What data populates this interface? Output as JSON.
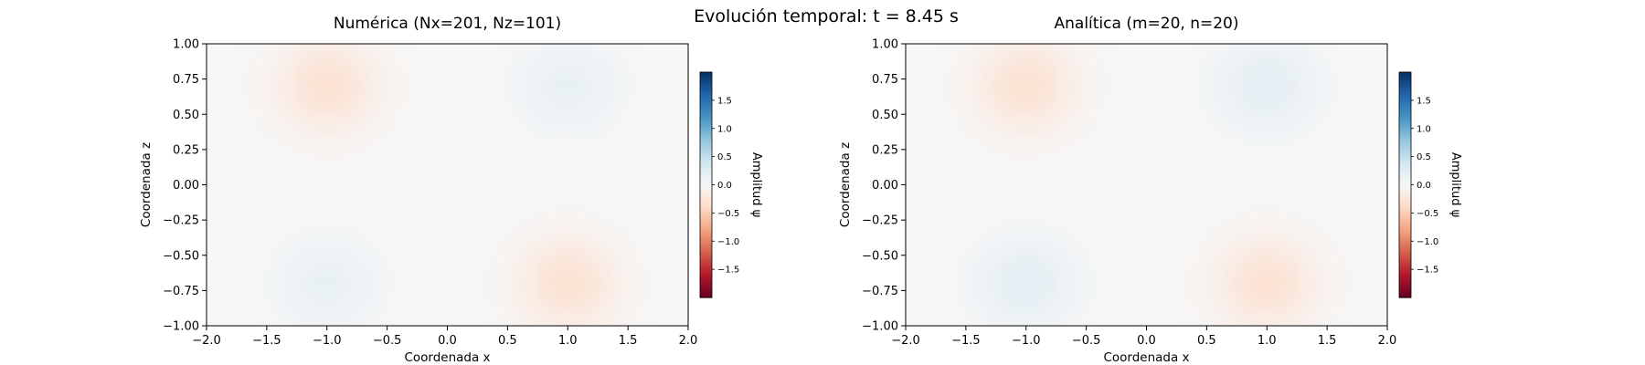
{
  "figure": {
    "suptitle": "Evolución temporal: t = 8.45 s"
  },
  "colormap": {
    "name": "RdBu",
    "stops": [
      "#67001f",
      "#b2182b",
      "#d6604d",
      "#f4a582",
      "#fddbc7",
      "#f7f7f7",
      "#d1e5f0",
      "#92c5de",
      "#4393c3",
      "#2166ac",
      "#053061"
    ]
  },
  "chart_data": [
    {
      "type": "heatmap",
      "title": "Numérica (Nx=201, Nz=101)",
      "xlabel": "Coordenada x",
      "ylabel": "Coordenada z",
      "xlim": [
        -2.0,
        2.0
      ],
      "ylim": [
        -1.0,
        1.0
      ],
      "xticks": [
        "−2.0",
        "−1.5",
        "−1.0",
        "−0.5",
        "0.0",
        "0.5",
        "1.0",
        "1.5",
        "2.0"
      ],
      "yticks": [
        "−1.00",
        "−0.75",
        "−0.50",
        "−0.25",
        "0.00",
        "0.25",
        "0.50",
        "0.75",
        "1.00"
      ],
      "colorbar": {
        "label": "Amplitud ψ",
        "vmin": -2.0,
        "vmax": 2.0,
        "ticks": [
          "1.5",
          "1.0",
          "0.5",
          "0.0",
          "−0.5",
          "−1.0",
          "−1.5"
        ]
      },
      "field": {
        "features": [
          {
            "x": -1.0,
            "z": 0.7,
            "amplitude": -0.3
          },
          {
            "x": 1.0,
            "z": 0.7,
            "amplitude": 0.15
          },
          {
            "x": -1.0,
            "z": -0.7,
            "amplitude": 0.15
          },
          {
            "x": 1.0,
            "z": -0.7,
            "amplitude": -0.3
          }
        ]
      }
    },
    {
      "type": "heatmap",
      "title": "Analítica (m=20, n=20)",
      "xlabel": "Coordenada x",
      "ylabel": "Coordenada z",
      "xlim": [
        -2.0,
        2.0
      ],
      "ylim": [
        -1.0,
        1.0
      ],
      "xticks": [
        "−2.0",
        "−1.5",
        "−1.0",
        "−0.5",
        "0.0",
        "0.5",
        "1.0",
        "1.5",
        "2.0"
      ],
      "yticks": [
        "−1.00",
        "−0.75",
        "−0.50",
        "−0.25",
        "0.00",
        "0.25",
        "0.50",
        "0.75",
        "1.00"
      ],
      "colorbar": {
        "label": "Amplitud ψ",
        "vmin": -2.0,
        "vmax": 2.0,
        "ticks": [
          "1.5",
          "1.0",
          "0.5",
          "0.0",
          "−0.5",
          "−1.0",
          "−1.5"
        ]
      },
      "field": {
        "features": [
          {
            "x": -1.0,
            "z": 0.7,
            "amplitude": -0.3
          },
          {
            "x": 1.0,
            "z": 0.7,
            "amplitude": 0.2
          },
          {
            "x": -1.0,
            "z": -0.7,
            "amplitude": 0.2
          },
          {
            "x": 1.0,
            "z": -0.7,
            "amplitude": -0.3
          }
        ]
      }
    }
  ]
}
